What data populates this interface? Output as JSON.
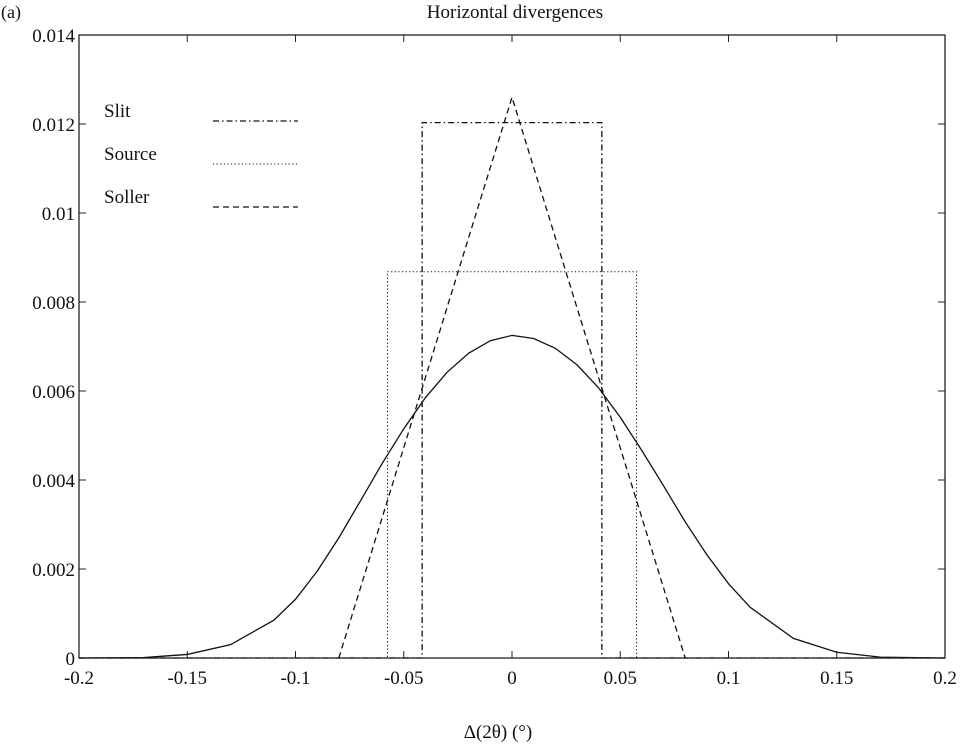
{
  "panel_label": "(a)",
  "chart_data": {
    "type": "line",
    "title": "Horizontal divergences",
    "xlabel": "Δ(2θ) (°)",
    "ylabel": "",
    "xlim": [
      -0.2,
      0.2
    ],
    "ylim": [
      0,
      0.014
    ],
    "grid": false,
    "legend_position": "top-left",
    "x_ticks": [
      -0.2,
      -0.15,
      -0.1,
      -0.05,
      0,
      0.05,
      0.1,
      0.15,
      0.2
    ],
    "x_tick_labels": [
      "-0.2",
      "-0.15",
      "-0.1",
      "-0.05",
      "0",
      "0.05",
      "0.1",
      "0.15",
      "0.2"
    ],
    "y_ticks": [
      0,
      0.002,
      0.004,
      0.006,
      0.008,
      0.01,
      0.012,
      0.014
    ],
    "y_tick_labels": [
      "0",
      "0.002",
      "0.004",
      "0.006",
      "0.008",
      "0.01",
      "0.012",
      "0.014"
    ],
    "series": [
      {
        "name": "Slit",
        "style": "dash-dot",
        "x": [
          -0.2,
          -0.0415,
          -0.0415,
          0.0415,
          0.0415,
          0.2
        ],
        "y": [
          0,
          0,
          0.01203,
          0.01203,
          0,
          0
        ]
      },
      {
        "name": "Source",
        "style": "dotted",
        "x": [
          -0.2,
          -0.0575,
          -0.0575,
          0.0575,
          0.0575,
          0.2
        ],
        "y": [
          0,
          0,
          0.00868,
          0.00868,
          0,
          0
        ]
      },
      {
        "name": "Soller",
        "style": "dashed",
        "x": [
          -0.08,
          0,
          0.08
        ],
        "y": [
          0,
          0.0126,
          0
        ]
      },
      {
        "name": "",
        "style": "solid",
        "x": [
          -0.2,
          -0.17,
          -0.15,
          -0.13,
          -0.11,
          -0.1,
          -0.09,
          -0.08,
          -0.07,
          -0.06,
          -0.05,
          -0.04,
          -0.03,
          -0.02,
          -0.01,
          0,
          0.01,
          0.02,
          0.03,
          0.04,
          0.05,
          0.06,
          0.07,
          0.08,
          0.09,
          0.1,
          0.11,
          0.13,
          0.15,
          0.17,
          0.2
        ],
        "y": [
          0,
          1e-05,
          8e-05,
          0.0003,
          0.00085,
          0.00132,
          0.00195,
          0.0027,
          0.00353,
          0.00437,
          0.00515,
          0.00585,
          0.00642,
          0.00685,
          0.00713,
          0.00725,
          0.00718,
          0.00696,
          0.00659,
          0.00607,
          0.00541,
          0.00466,
          0.00387,
          0.00306,
          0.00232,
          0.00167,
          0.00114,
          0.00044,
          0.00013,
          2e-05,
          0
        ]
      }
    ]
  }
}
